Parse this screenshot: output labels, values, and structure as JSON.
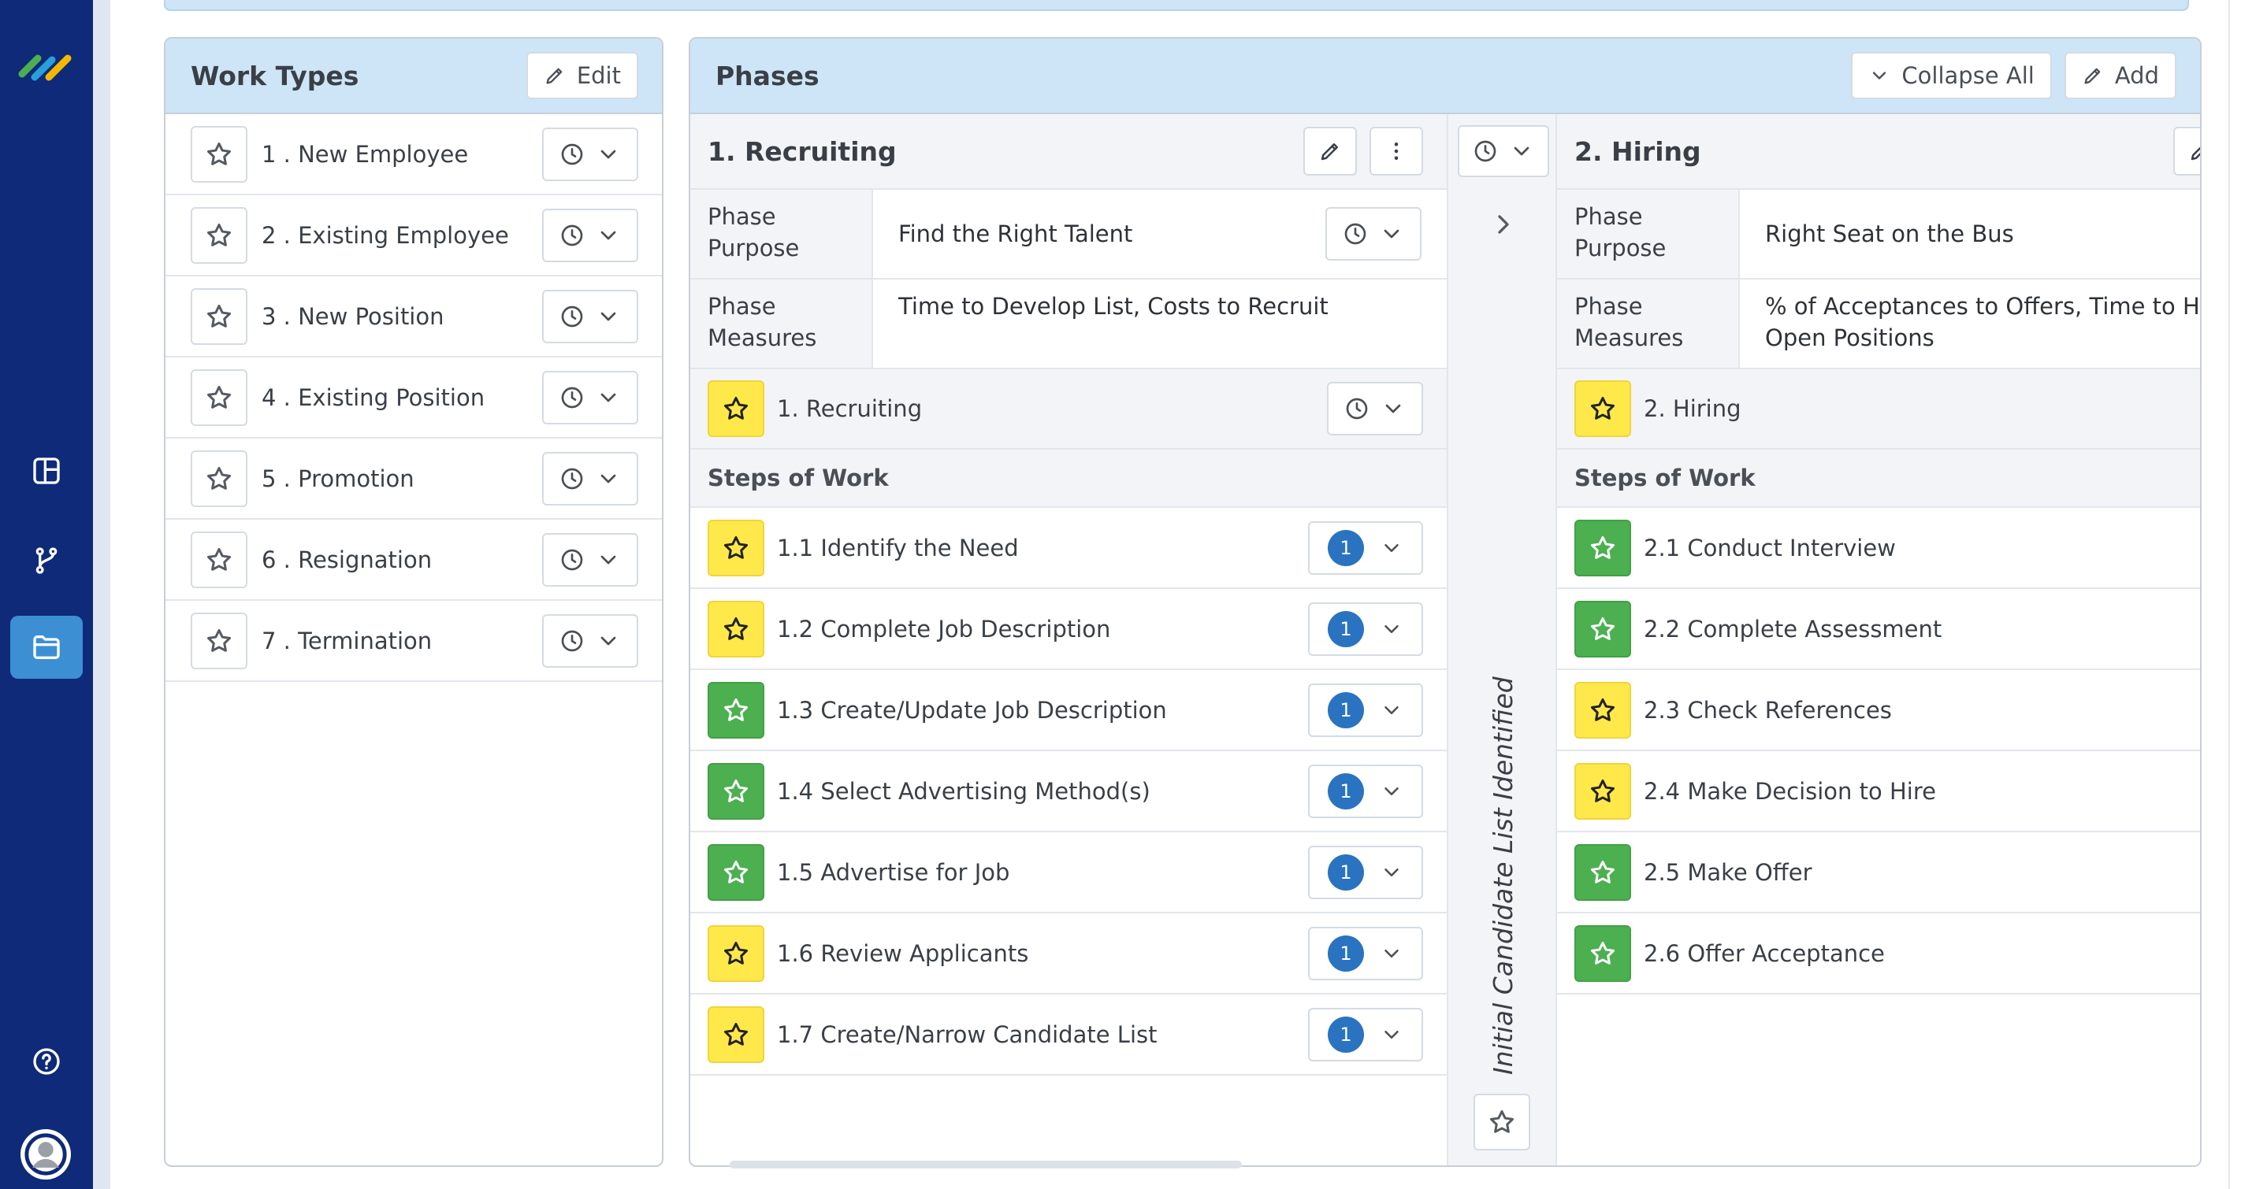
{
  "nav": {
    "logo": "app-logo",
    "items": [
      {
        "icon": "dashboard-icon",
        "active": false
      },
      {
        "icon": "branch-icon",
        "active": false
      },
      {
        "icon": "folder-icon",
        "active": true
      }
    ],
    "help_icon": "help-icon",
    "avatar_icon": "user-avatar-icon",
    "colors": {
      "rail": "#0e2a78",
      "active": "#3d8fd4"
    }
  },
  "work_types": {
    "title": "Work Types",
    "edit_label": "Edit",
    "items": [
      {
        "label": "1 . New Employee"
      },
      {
        "label": "2 . Existing Employee"
      },
      {
        "label": "3 . New Position"
      },
      {
        "label": "4 . Existing Position"
      },
      {
        "label": "5 . Promotion"
      },
      {
        "label": "6 . Resignation"
      },
      {
        "label": "7 . Termination"
      }
    ]
  },
  "phases_panel": {
    "title": "Phases",
    "collapse_all_label": "Collapse All",
    "add_label": "Add"
  },
  "phases": [
    {
      "name": "1. Recruiting",
      "purpose_key": "Phase Purpose",
      "purpose": "Find the Right Talent",
      "measures_key": "Phase Measures",
      "measures": "Time to Develop List, Costs to Recruit",
      "subprocess": "1. Recruiting",
      "subprocess_status": "yellow",
      "steps_title": "Steps of Work",
      "steps": [
        {
          "label": "1.1 Identify the Need",
          "status": "yellow",
          "count": "1"
        },
        {
          "label": "1.2 Complete Job Description",
          "status": "yellow",
          "count": "1"
        },
        {
          "label": "1.3 Create/Update Job Description",
          "status": "green",
          "count": "1"
        },
        {
          "label": "1.4 Select Advertising Method(s)",
          "status": "green",
          "count": "1"
        },
        {
          "label": "1.5 Advertise for Job",
          "status": "green",
          "count": "1"
        },
        {
          "label": "1.6 Review Applicants",
          "status": "yellow",
          "count": "1"
        },
        {
          "label": "1.7 Create/Narrow Candidate List",
          "status": "yellow",
          "count": "1"
        }
      ]
    },
    {
      "name": "2. Hiring",
      "purpose_key": "Phase Purpose",
      "purpose": "Right Seat on the Bus",
      "measures_key": "Phase Measures",
      "measures_line1": "% of Acceptances to Offers, Time to Hire,",
      "measures_line2": "Open Positions",
      "subprocess": "2. Hiring",
      "subprocess_status": "yellow",
      "steps_title": "Steps of Work",
      "steps": [
        {
          "label": "2.1 Conduct Interview",
          "status": "green"
        },
        {
          "label": "2.2 Complete Assessment",
          "status": "green"
        },
        {
          "label": "2.3 Check References",
          "status": "yellow"
        },
        {
          "label": "2.4 Make Decision to Hire",
          "status": "yellow"
        },
        {
          "label": "2.5 Make Offer",
          "status": "green"
        },
        {
          "label": "2.6 Offer Acceptance",
          "status": "green"
        }
      ]
    }
  ],
  "transition": {
    "label": "Initial Candidate List Identified"
  },
  "status_colors": {
    "yellow": "#ffe94a",
    "green": "#4caf50",
    "badge": "#2a73c0"
  }
}
